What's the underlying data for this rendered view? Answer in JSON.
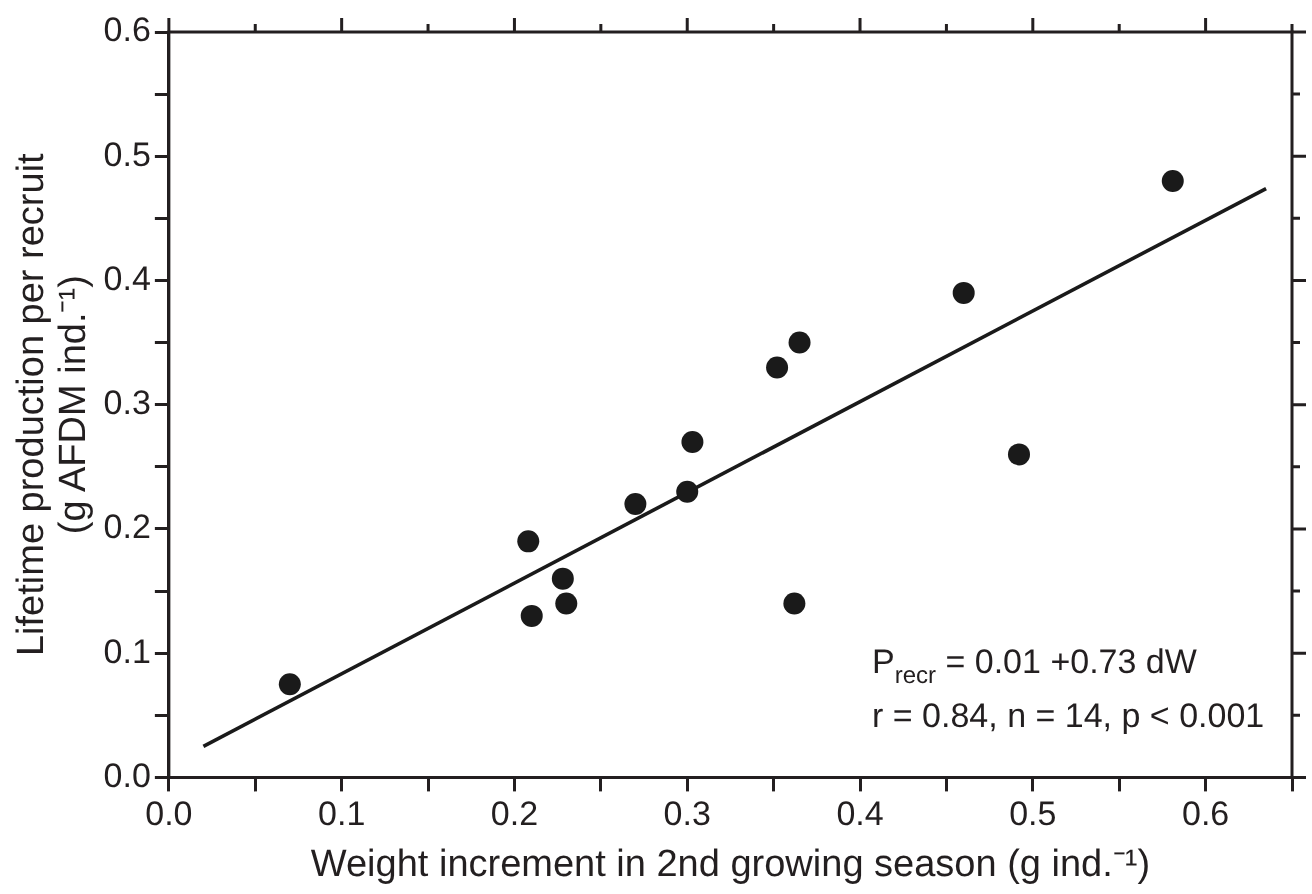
{
  "chart_data": {
    "type": "scatter",
    "xlabel": "Weight increment in 2nd growing season (g ind.⁻¹)",
    "ylabel": "Lifetime production per recruit\n(g AFDM ind.⁻¹)",
    "xlim": [
      0,
      0.65
    ],
    "ylim": [
      0,
      0.6
    ],
    "xticks": [
      {
        "value": 0,
        "label": "0.0"
      },
      {
        "value": 0.05,
        "label": null
      },
      {
        "value": 0.1,
        "label": "0.1"
      },
      {
        "value": 0.15,
        "label": null
      },
      {
        "value": 0.2,
        "label": "0.2"
      },
      {
        "value": 0.25,
        "label": null
      },
      {
        "value": 0.3,
        "label": "0.3"
      },
      {
        "value": 0.35,
        "label": null
      },
      {
        "value": 0.4,
        "label": "0.4"
      },
      {
        "value": 0.45,
        "label": null
      },
      {
        "value": 0.5,
        "label": "0.5"
      },
      {
        "value": 0.55,
        "label": null
      },
      {
        "value": 0.6,
        "label": "0.6"
      },
      {
        "value": 0.65,
        "label": null
      }
    ],
    "yticks": [
      {
        "value": 0,
        "label": "0.0"
      },
      {
        "value": 0.05,
        "label": null
      },
      {
        "value": 0.1,
        "label": "0.1"
      },
      {
        "value": 0.15,
        "label": null
      },
      {
        "value": 0.2,
        "label": "0.2"
      },
      {
        "value": 0.25,
        "label": null
      },
      {
        "value": 0.3,
        "label": "0.3"
      },
      {
        "value": 0.35,
        "label": null
      },
      {
        "value": 0.4,
        "label": "0.4"
      },
      {
        "value": 0.45,
        "label": null
      },
      {
        "value": 0.5,
        "label": "0.5"
      },
      {
        "value": 0.55,
        "label": null
      },
      {
        "value": 0.6,
        "label": "0.6"
      }
    ],
    "marker": "circle",
    "series": [
      {
        "color": "#1a1a1a",
        "x": [
          0.07,
          0.208,
          0.21,
          0.228,
          0.23,
          0.27,
          0.3,
          0.303,
          0.352,
          0.365,
          0.362,
          0.46,
          0.492,
          0.581
        ],
        "values": [
          0.075,
          0.19,
          0.13,
          0.16,
          0.14,
          0.22,
          0.23,
          0.27,
          0.33,
          0.35,
          0.14,
          0.39,
          0.26,
          0.48
        ]
      },
      {
        "type": "line",
        "color": "#1a1a1a",
        "marker": "none",
        "x": [
          0.02,
          0.635
        ],
        "values": [
          0.025,
          0.474
        ]
      }
    ],
    "annotations": [
      "P$_{recr}$ = 0.01 +0.73 dW",
      "r = 0.84, n = 14, p < 0.001"
    ]
  }
}
